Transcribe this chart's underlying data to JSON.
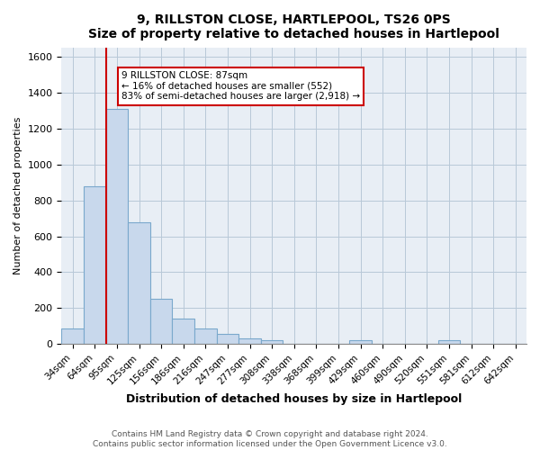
{
  "title": "9, RILLSTON CLOSE, HARTLEPOOL, TS26 0PS",
  "subtitle": "Size of property relative to detached houses in Hartlepool",
  "xlabel": "Distribution of detached houses by size in Hartlepool",
  "ylabel": "Number of detached properties",
  "bar_labels": [
    "34sqm",
    "64sqm",
    "95sqm",
    "125sqm",
    "156sqm",
    "186sqm",
    "216sqm",
    "247sqm",
    "277sqm",
    "308sqm",
    "338sqm",
    "368sqm",
    "399sqm",
    "429sqm",
    "460sqm",
    "490sqm",
    "520sqm",
    "551sqm",
    "581sqm",
    "612sqm",
    "642sqm"
  ],
  "bar_values": [
    85,
    880,
    1310,
    680,
    250,
    140,
    85,
    55,
    30,
    20,
    0,
    0,
    0,
    20,
    0,
    0,
    0,
    20,
    0,
    0,
    0
  ],
  "bar_color": "#c8d8ec",
  "bar_edge_color": "#7aa8cc",
  "marker_bin_index": 2,
  "marker_color": "#cc0000",
  "annotation_lines": [
    "9 RILLSTON CLOSE: 87sqm",
    "← 16% of detached houses are smaller (552)",
    "83% of semi-detached houses are larger (2,918) →"
  ],
  "ylim": [
    0,
    1650
  ],
  "yticks": [
    0,
    200,
    400,
    600,
    800,
    1000,
    1200,
    1400,
    1600
  ],
  "footer_line1": "Contains HM Land Registry data © Crown copyright and database right 2024.",
  "footer_line2": "Contains public sector information licensed under the Open Government Licence v3.0.",
  "bg_color": "#ffffff",
  "plot_bg_color": "#e8eef5"
}
